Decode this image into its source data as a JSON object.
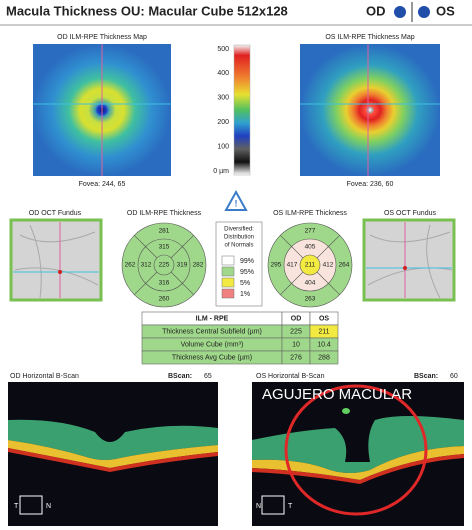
{
  "header": {
    "title": "Macula Thickness OU: Macular Cube 512x128",
    "od": "OD",
    "os": "OS"
  },
  "maps": {
    "od": {
      "title": "OD ILM-RPE Thickness Map",
      "fovea": "Fovea: 244, 65"
    },
    "os": {
      "title": "OS ILM-RPE Thickness Map",
      "fovea": "Fovea: 236, 60"
    }
  },
  "scale": {
    "labels": [
      "500",
      "400",
      "300",
      "200",
      "100",
      "0 µm"
    ]
  },
  "fundus": {
    "od": "OD OCT Fundus",
    "os": "OS OCT Fundus"
  },
  "sectors": {
    "od": {
      "title": "OD ILM-RPE Thickness",
      "outer": {
        "top": "281",
        "left": "262",
        "right": "282",
        "bottom": "260"
      },
      "inner": {
        "top": "315",
        "left": "312",
        "right": "319",
        "bottom": "316"
      },
      "center": "225"
    },
    "os": {
      "title": "OS ILM-RPE Thickness",
      "outer": {
        "top": "277",
        "left": "295",
        "right": "264",
        "bottom": "263"
      },
      "inner": {
        "top": "405",
        "left": "417",
        "right": "412",
        "bottom": "404"
      },
      "center": "211"
    }
  },
  "normals": {
    "title": [
      "Diversified:",
      "Distribution",
      "of Normals"
    ],
    "levels": [
      "99%",
      "95%",
      "5%",
      "1%"
    ]
  },
  "table": {
    "header": [
      "ILM - RPE",
      "OD",
      "OS"
    ],
    "rows": [
      [
        "Thickness Central Subfield (µm)",
        "225",
        "211"
      ],
      [
        "Volume Cube (mm³)",
        "10",
        "10.4"
      ],
      [
        "Thickness Avg Cube (µm)",
        "276",
        "288"
      ]
    ]
  },
  "bscans": {
    "od": {
      "title": "OD Horizontal B-Scan",
      "label": "BScan:",
      "number": "65"
    },
    "os": {
      "title": "OS Horizontal B-Scan",
      "label": "BScan:",
      "number": "60",
      "annotation": "AGUJERO MACULAR"
    }
  },
  "orientation": {
    "od": [
      "T",
      "N"
    ],
    "os": [
      "N",
      "T"
    ]
  }
}
